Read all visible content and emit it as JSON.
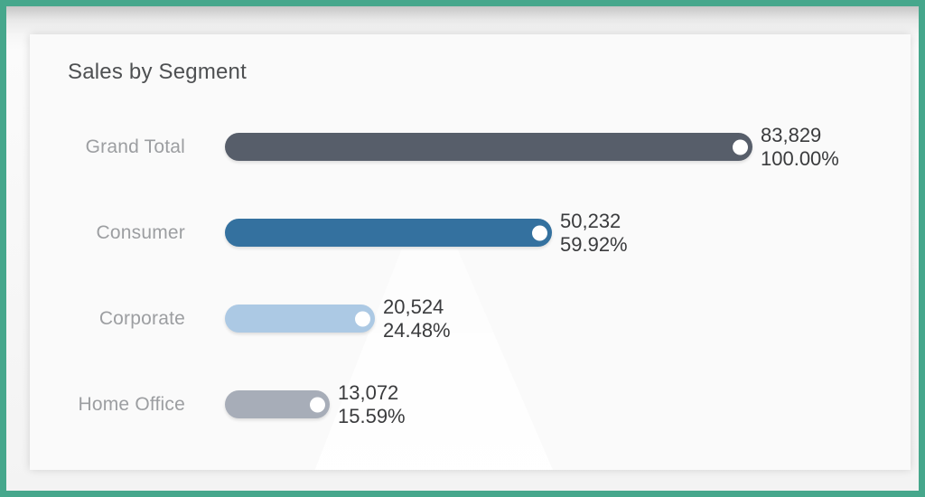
{
  "window": {
    "frame_border_color": "#46a78c",
    "card_background": "#fafafa"
  },
  "chart_data": {
    "type": "bar",
    "orientation": "horizontal",
    "title": "Sales by Segment",
    "xlabel": "",
    "ylabel": "",
    "xlim": [
      0,
      83829
    ],
    "grid": false,
    "legend": false,
    "marker_style": "white circle dot inset at bar end",
    "bar_shape": "rounded pill",
    "categories": [
      "Grand Total",
      "Consumer",
      "Corporate",
      "Home Office"
    ],
    "values": [
      83829,
      50232,
      20524,
      13072
    ],
    "value_labels": [
      "83,829",
      "50,232",
      "20,524",
      "13,072"
    ],
    "percents": [
      100.0,
      59.92,
      24.48,
      15.59
    ],
    "percent_labels": [
      "100.00%",
      "59.92%",
      "24.48%",
      "15.59%"
    ],
    "bar_colors": [
      "#575e6a",
      "#34719f",
      "#acc9e4",
      "#a7adb8"
    ],
    "rows": [
      {
        "category": "Grand Total",
        "value": 83829,
        "value_label": "83,829",
        "percent": 100.0,
        "percent_label": "100.00%",
        "color": "#575e6a"
      },
      {
        "category": "Consumer",
        "value": 50232,
        "value_label": "50,232",
        "percent": 59.92,
        "percent_label": "59.92%",
        "color": "#34719f"
      },
      {
        "category": "Corporate",
        "value": 20524,
        "value_label": "20,524",
        "percent": 24.48,
        "percent_label": "24.48%",
        "color": "#acc9e4"
      },
      {
        "category": "Home Office",
        "value": 13072,
        "value_label": "13,072",
        "percent": 15.59,
        "percent_label": "15.59%",
        "color": "#a7adb8"
      }
    ],
    "text_colors": {
      "title": "#4e5052",
      "category_labels": "#9c9ea1",
      "value_labels": "#3a3b3d"
    }
  }
}
